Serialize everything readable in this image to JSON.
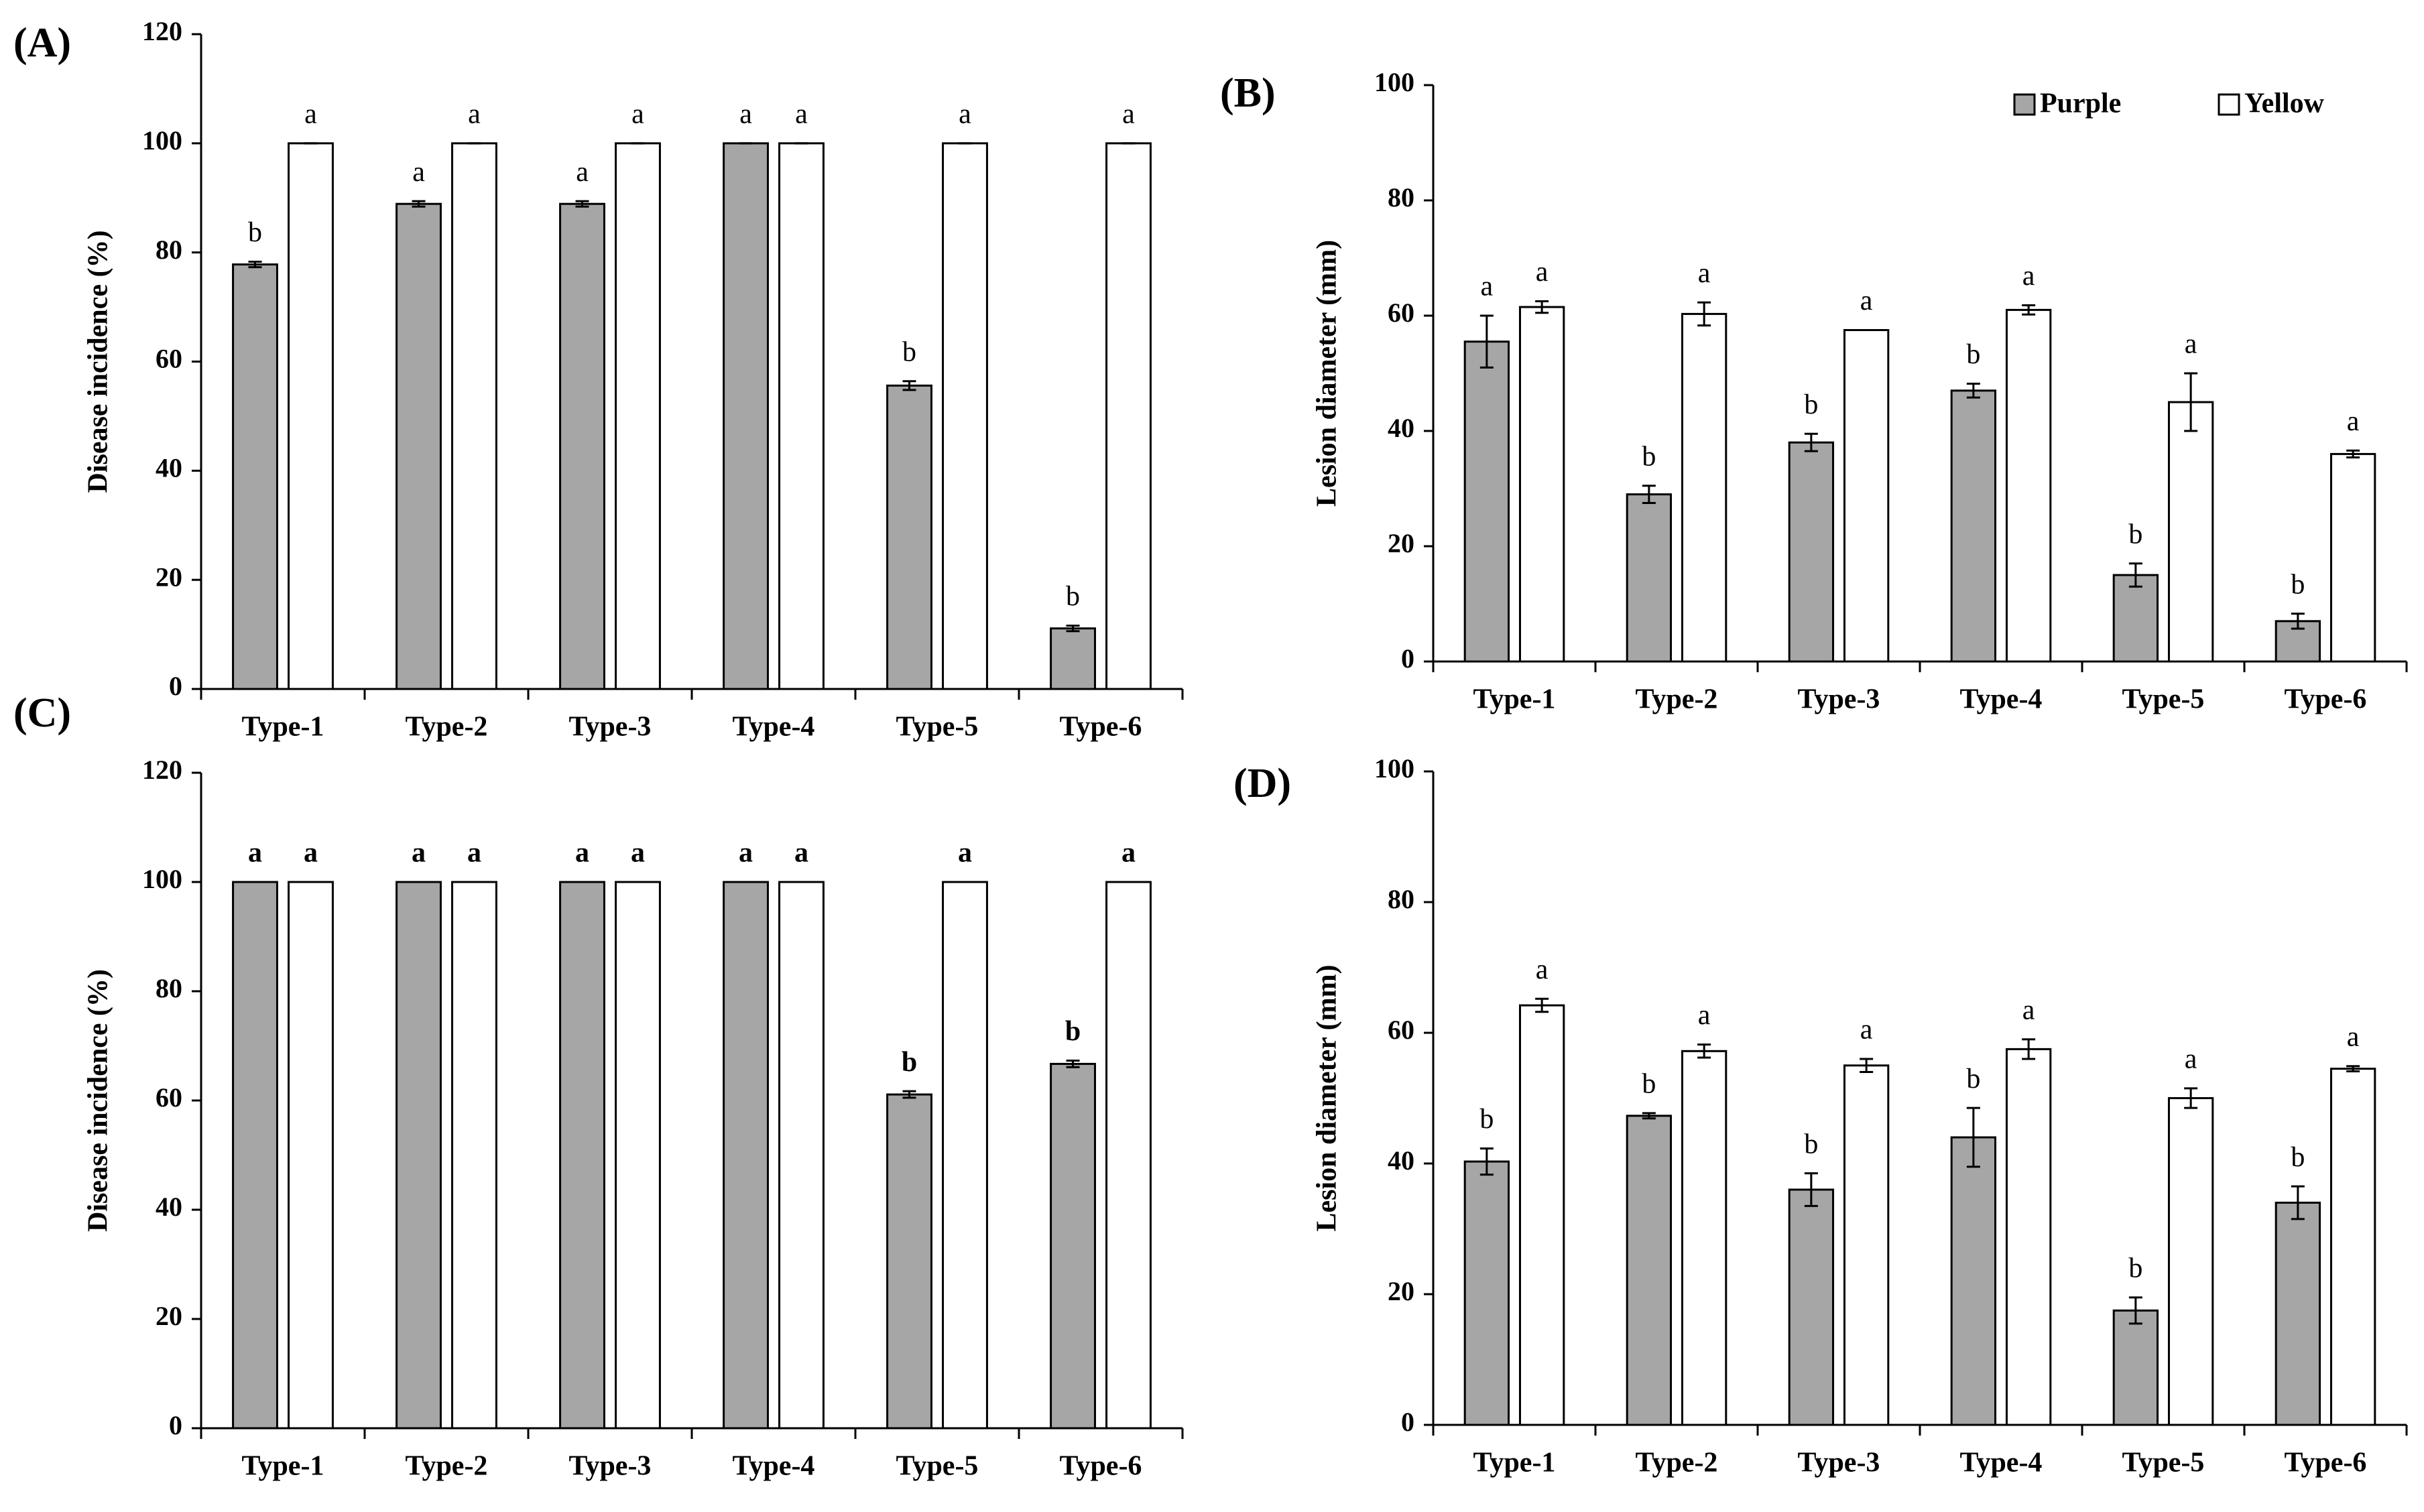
{
  "chart_data": [
    {
      "type": "bar",
      "panel": "(A)",
      "ylabel": "Disease incidence (%)",
      "categories": [
        "Type-1",
        "Type-2",
        "Type-3",
        "Type-4",
        "Type-5",
        "Type-6"
      ],
      "ylim": [
        0,
        120
      ],
      "yticks": [
        0,
        20,
        40,
        60,
        80,
        100,
        120
      ],
      "grid": false,
      "legend": null,
      "annotation_weight": "normal",
      "series": [
        {
          "name": "Purple",
          "color": "#a6a6a6",
          "values": [
            77.8,
            88.9,
            88.9,
            100,
            55.6,
            11.1
          ],
          "errors": [
            0.5,
            0.5,
            0.5,
            0,
            0.8,
            0.5
          ],
          "annotations": [
            "b",
            "a",
            "a",
            "a",
            "b",
            "b"
          ]
        },
        {
          "name": "Yellow",
          "color": "#ffffff",
          "values": [
            100,
            100,
            100,
            100,
            100,
            100
          ],
          "errors": [
            0,
            0,
            0,
            0,
            0,
            0
          ],
          "annotations": [
            "a",
            "a",
            "a",
            "a",
            "a",
            "a"
          ]
        }
      ]
    },
    {
      "type": "bar",
      "panel": "(B)",
      "ylabel": "Lesion diameter (mm)",
      "categories": [
        "Type-1",
        "Type-2",
        "Type-3",
        "Type-4",
        "Type-5",
        "Type-6"
      ],
      "ylim": [
        0,
        100
      ],
      "yticks": [
        0,
        20,
        40,
        60,
        80,
        100
      ],
      "grid": false,
      "legend": "upper right",
      "annotation_weight": "normal",
      "series": [
        {
          "name": "Purple",
          "color": "#a6a6a6",
          "values": [
            55.5,
            29,
            38,
            47,
            15,
            7
          ],
          "errors": [
            4.5,
            1.5,
            1.5,
            1.2,
            2,
            1.3
          ],
          "annotations": [
            "a",
            "b",
            "b",
            "b",
            "b",
            "b"
          ]
        },
        {
          "name": "Yellow",
          "color": "#ffffff",
          "values": [
            61.5,
            60.3,
            57.5,
            61,
            45,
            36
          ],
          "errors": [
            1,
            2,
            0,
            0.8,
            5,
            0.6
          ],
          "annotations": [
            "a",
            "a",
            "a",
            "a",
            "a",
            "a"
          ]
        }
      ]
    },
    {
      "type": "bar",
      "panel": "(C)",
      "ylabel": "Disease incidence (%)",
      "categories": [
        "Type-1",
        "Type-2",
        "Type-3",
        "Type-4",
        "Type-5",
        "Type-6"
      ],
      "ylim": [
        0,
        120
      ],
      "yticks": [
        0,
        20,
        40,
        60,
        80,
        100,
        120
      ],
      "grid": false,
      "legend": null,
      "annotation_weight": "bold",
      "series": [
        {
          "name": "Purple",
          "color": "#a6a6a6",
          "values": [
            100,
            100,
            100,
            100,
            61.1,
            66.7
          ],
          "errors": [
            0,
            0,
            0,
            0,
            0.6,
            0.6
          ],
          "annotations": [
            "a",
            "a",
            "a",
            "a",
            "b",
            "b"
          ]
        },
        {
          "name": "Yellow",
          "color": "#ffffff",
          "values": [
            100,
            100,
            100,
            100,
            100,
            100
          ],
          "errors": [
            0,
            0,
            0,
            0,
            0,
            0
          ],
          "annotations": [
            "a",
            "a",
            "a",
            "a",
            "a",
            "a"
          ]
        }
      ]
    },
    {
      "type": "bar",
      "panel": "(D)",
      "ylabel": "Lesion diameter (mm)",
      "categories": [
        "Type-1",
        "Type-2",
        "Type-3",
        "Type-4",
        "Type-5",
        "Type-6"
      ],
      "ylim": [
        0,
        100
      ],
      "yticks": [
        0,
        20,
        40,
        60,
        80,
        100
      ],
      "grid": false,
      "legend": null,
      "annotation_weight": "normal",
      "series": [
        {
          "name": "Purple",
          "color": "#a6a6a6",
          "values": [
            40.3,
            47.3,
            36,
            44,
            17.5,
            34
          ],
          "errors": [
            2,
            0.4,
            2.5,
            4.5,
            2,
            2.5
          ],
          "annotations": [
            "b",
            "b",
            "b",
            "b",
            "b",
            "b"
          ]
        },
        {
          "name": "Yellow",
          "color": "#ffffff",
          "values": [
            64.2,
            57.2,
            55,
            57.5,
            50,
            54.5
          ],
          "errors": [
            1,
            1,
            1,
            1.5,
            1.5,
            0.4
          ],
          "annotations": [
            "a",
            "a",
            "a",
            "a",
            "a",
            "a"
          ]
        }
      ]
    }
  ]
}
